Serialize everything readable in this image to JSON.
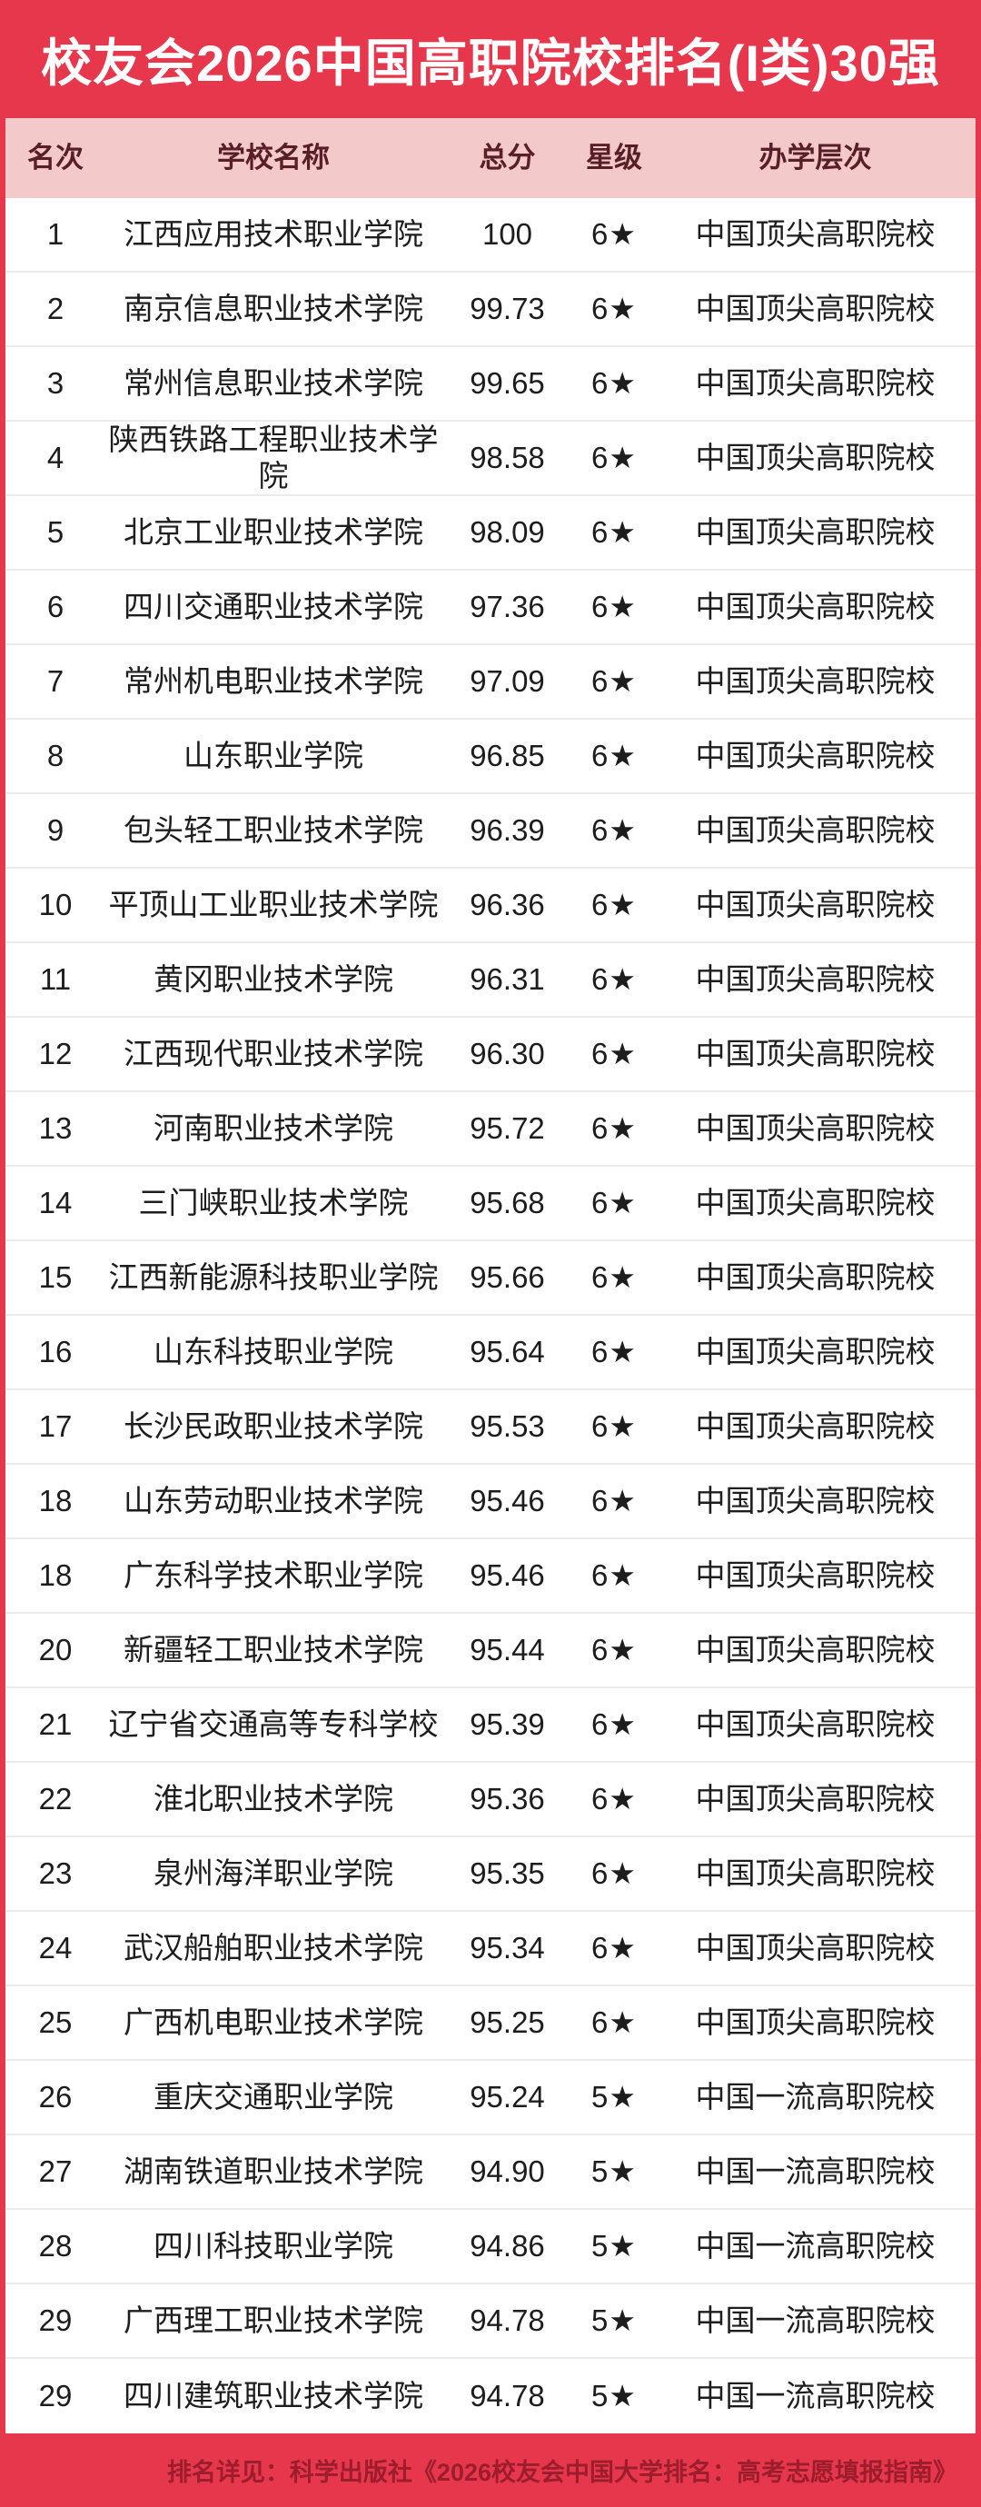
{
  "header": {
    "title": "校友会2026中国高职院校排名(I类)30强"
  },
  "footer": {
    "note": "排名详见：科学出版社《2026校友会中国大学排名：高考志愿填报指南》"
  },
  "colors": {
    "frame_red": "#e7374d",
    "header_pink": "#f4c9c9",
    "header_text": "#581f27",
    "body_text": "#1d1d1d",
    "separator": "#ebebeb",
    "footer_text": "#9c1d2b",
    "title_text": "#ffffff",
    "row_background": "#ffffff"
  },
  "chart_data": {
    "type": "table",
    "title": "校友会2026中国高职院校排名(I类)30强",
    "columns": [
      "名次",
      "学校名称",
      "总分",
      "星级",
      "办学层次"
    ],
    "rows": [
      {
        "rank": "1",
        "school": "江西应用技术职业学院",
        "score": "100",
        "star": "6★",
        "level": "中国顶尖高职院校"
      },
      {
        "rank": "2",
        "school": "南京信息职业技术学院",
        "score": "99.73",
        "star": "6★",
        "level": "中国顶尖高职院校"
      },
      {
        "rank": "3",
        "school": "常州信息职业技术学院",
        "score": "99.65",
        "star": "6★",
        "level": "中国顶尖高职院校"
      },
      {
        "rank": "4",
        "school": "陕西铁路工程职业技术学院",
        "score": "98.58",
        "star": "6★",
        "level": "中国顶尖高职院校"
      },
      {
        "rank": "5",
        "school": "北京工业职业技术学院",
        "score": "98.09",
        "star": "6★",
        "level": "中国顶尖高职院校"
      },
      {
        "rank": "6",
        "school": "四川交通职业技术学院",
        "score": "97.36",
        "star": "6★",
        "level": "中国顶尖高职院校"
      },
      {
        "rank": "7",
        "school": "常州机电职业技术学院",
        "score": "97.09",
        "star": "6★",
        "level": "中国顶尖高职院校"
      },
      {
        "rank": "8",
        "school": "山东职业学院",
        "score": "96.85",
        "star": "6★",
        "level": "中国顶尖高职院校"
      },
      {
        "rank": "9",
        "school": "包头轻工职业技术学院",
        "score": "96.39",
        "star": "6★",
        "level": "中国顶尖高职院校"
      },
      {
        "rank": "10",
        "school": "平顶山工业职业技术学院",
        "score": "96.36",
        "star": "6★",
        "level": "中国顶尖高职院校"
      },
      {
        "rank": "11",
        "school": "黄冈职业技术学院",
        "score": "96.31",
        "star": "6★",
        "level": "中国顶尖高职院校"
      },
      {
        "rank": "12",
        "school": "江西现代职业技术学院",
        "score": "96.30",
        "star": "6★",
        "level": "中国顶尖高职院校"
      },
      {
        "rank": "13",
        "school": "河南职业技术学院",
        "score": "95.72",
        "star": "6★",
        "level": "中国顶尖高职院校"
      },
      {
        "rank": "14",
        "school": "三门峡职业技术学院",
        "score": "95.68",
        "star": "6★",
        "level": "中国顶尖高职院校"
      },
      {
        "rank": "15",
        "school": "江西新能源科技职业学院",
        "score": "95.66",
        "star": "6★",
        "level": "中国顶尖高职院校"
      },
      {
        "rank": "16",
        "school": "山东科技职业学院",
        "score": "95.64",
        "star": "6★",
        "level": "中国顶尖高职院校"
      },
      {
        "rank": "17",
        "school": "长沙民政职业技术学院",
        "score": "95.53",
        "star": "6★",
        "level": "中国顶尖高职院校"
      },
      {
        "rank": "18",
        "school": "山东劳动职业技术学院",
        "score": "95.46",
        "star": "6★",
        "level": "中国顶尖高职院校"
      },
      {
        "rank": "18",
        "school": "广东科学技术职业学院",
        "score": "95.46",
        "star": "6★",
        "level": "中国顶尖高职院校"
      },
      {
        "rank": "20",
        "school": "新疆轻工职业技术学院",
        "score": "95.44",
        "star": "6★",
        "level": "中国顶尖高职院校"
      },
      {
        "rank": "21",
        "school": "辽宁省交通高等专科学校",
        "score": "95.39",
        "star": "6★",
        "level": "中国顶尖高职院校"
      },
      {
        "rank": "22",
        "school": "淮北职业技术学院",
        "score": "95.36",
        "star": "6★",
        "level": "中国顶尖高职院校"
      },
      {
        "rank": "23",
        "school": "泉州海洋职业学院",
        "score": "95.35",
        "star": "6★",
        "level": "中国顶尖高职院校"
      },
      {
        "rank": "24",
        "school": "武汉船舶职业技术学院",
        "score": "95.34",
        "star": "6★",
        "level": "中国顶尖高职院校"
      },
      {
        "rank": "25",
        "school": "广西机电职业技术学院",
        "score": "95.25",
        "star": "6★",
        "level": "中国顶尖高职院校"
      },
      {
        "rank": "26",
        "school": "重庆交通职业学院",
        "score": "95.24",
        "star": "5★",
        "level": "中国一流高职院校"
      },
      {
        "rank": "27",
        "school": "湖南铁道职业技术学院",
        "score": "94.90",
        "star": "5★",
        "level": "中国一流高职院校"
      },
      {
        "rank": "28",
        "school": "四川科技职业学院",
        "score": "94.86",
        "star": "5★",
        "level": "中国一流高职院校"
      },
      {
        "rank": "29",
        "school": "广西理工职业技术学院",
        "score": "94.78",
        "star": "5★",
        "level": "中国一流高职院校"
      },
      {
        "rank": "29",
        "school": "四川建筑职业技术学院",
        "score": "94.78",
        "star": "5★",
        "level": "中国一流高职院校"
      }
    ],
    "layout": {
      "grid": "off",
      "row_count": 30,
      "note_position": "bottom-right"
    }
  }
}
